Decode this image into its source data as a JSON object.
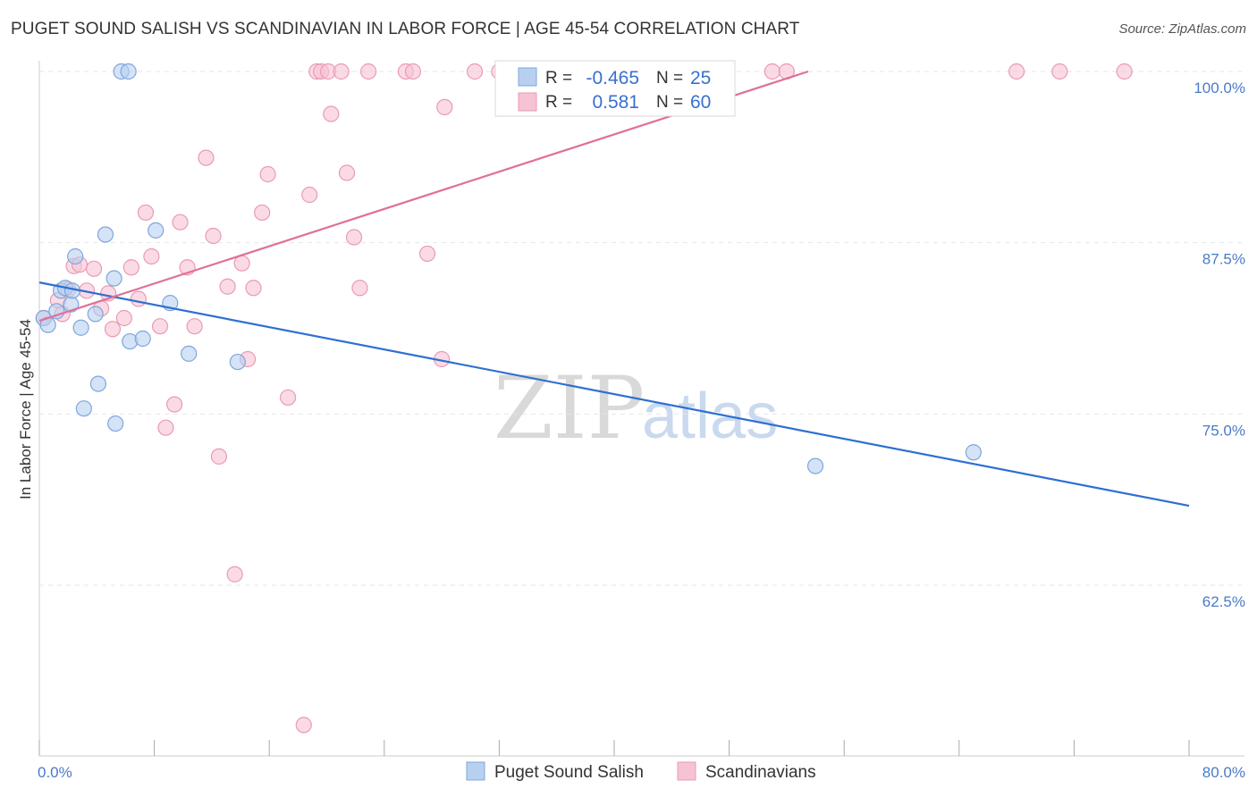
{
  "title": "PUGET SOUND SALISH VS SCANDINAVIAN IN LABOR FORCE | AGE 45-54 CORRELATION CHART",
  "source": "Source: ZipAtlas.com",
  "watermark": {
    "zip": "ZIP",
    "atlas": "atlas"
  },
  "colors": {
    "blue_fill": "#b8d0f0",
    "blue_stroke": "#7fa6dc",
    "blue_line": "#2e6fd1",
    "pink_fill": "#f6c3d3",
    "pink_stroke": "#e99ab4",
    "pink_line": "#e07098",
    "tick_text": "#4a7bc8",
    "grid": "#e6e6e6"
  },
  "legend": {
    "series": [
      {
        "r_label": "R =",
        "r_value": "-0.465",
        "n_label": "N =",
        "n_value": "25"
      },
      {
        "r_label": "R =",
        "r_value": "0.581",
        "n_label": "N =",
        "n_value": "60"
      }
    ]
  },
  "chart_data": {
    "type": "scatter",
    "xlabel": "",
    "ylabel": "In Labor Force | Age 45-54",
    "xlim": [
      0,
      80
    ],
    "ylim": [
      51,
      101.5
    ],
    "x_ticks": [
      {
        "value": 0,
        "label": "0.0%"
      },
      {
        "value": 80,
        "label": "80.0%"
      }
    ],
    "y_ticks": [
      {
        "value": 62.5,
        "label": "62.5%"
      },
      {
        "value": 75.0,
        "label": "75.0%"
      },
      {
        "value": 87.5,
        "label": "87.5%"
      },
      {
        "value": 100.0,
        "label": "100.0%"
      }
    ],
    "x_minor_ticks": [
      0,
      8,
      16,
      24,
      32,
      40,
      48,
      56,
      64,
      72,
      80
    ],
    "grid": true,
    "legend_position": "top-center",
    "series": [
      {
        "name": "Puget Sound Salish",
        "color": "blue",
        "points": [
          [
            0.3,
            82.0
          ],
          [
            0.6,
            81.5
          ],
          [
            1.2,
            82.5
          ],
          [
            1.5,
            84.0
          ],
          [
            1.8,
            84.2
          ],
          [
            2.2,
            83.0
          ],
          [
            2.3,
            84.0
          ],
          [
            2.5,
            86.5
          ],
          [
            2.9,
            81.3
          ],
          [
            3.1,
            75.4
          ],
          [
            3.9,
            82.3
          ],
          [
            4.1,
            77.2
          ],
          [
            4.6,
            88.1
          ],
          [
            5.2,
            84.9
          ],
          [
            5.3,
            74.3
          ],
          [
            5.7,
            100.0
          ],
          [
            6.2,
            100.0
          ],
          [
            6.3,
            80.3
          ],
          [
            7.2,
            80.5
          ],
          [
            8.1,
            88.4
          ],
          [
            9.1,
            83.1
          ],
          [
            10.4,
            79.4
          ],
          [
            13.8,
            78.8
          ],
          [
            54.0,
            71.2
          ],
          [
            65.0,
            72.2
          ]
        ],
        "trend": {
          "x": [
            0,
            80
          ],
          "y": [
            84.6,
            68.3
          ]
        }
      },
      {
        "name": "Scandinavians",
        "color": "pink",
        "points": [
          [
            0.3,
            82.0
          ],
          [
            1.3,
            83.3
          ],
          [
            1.6,
            82.3
          ],
          [
            2.0,
            84.1
          ],
          [
            2.4,
            85.8
          ],
          [
            2.8,
            85.9
          ],
          [
            3.3,
            84.0
          ],
          [
            3.8,
            85.6
          ],
          [
            4.3,
            82.7
          ],
          [
            4.8,
            83.8
          ],
          [
            5.1,
            81.2
          ],
          [
            5.9,
            82.0
          ],
          [
            6.4,
            85.7
          ],
          [
            6.9,
            83.4
          ],
          [
            7.4,
            89.7
          ],
          [
            7.8,
            86.5
          ],
          [
            8.4,
            81.4
          ],
          [
            8.8,
            74.0
          ],
          [
            9.4,
            75.7
          ],
          [
            9.8,
            89.0
          ],
          [
            10.3,
            85.7
          ],
          [
            10.8,
            81.4
          ],
          [
            11.6,
            93.7
          ],
          [
            12.1,
            88.0
          ],
          [
            12.5,
            71.9
          ],
          [
            13.1,
            84.3
          ],
          [
            13.6,
            63.3
          ],
          [
            14.1,
            86.0
          ],
          [
            14.5,
            79.0
          ],
          [
            14.9,
            84.2
          ],
          [
            15.5,
            89.7
          ],
          [
            15.9,
            92.5
          ],
          [
            17.3,
            76.2
          ],
          [
            18.4,
            52.3
          ],
          [
            18.8,
            91.0
          ],
          [
            19.3,
            100.0
          ],
          [
            19.6,
            100.0
          ],
          [
            20.1,
            100.0
          ],
          [
            20.3,
            96.9
          ],
          [
            21.0,
            100.0
          ],
          [
            21.4,
            92.6
          ],
          [
            21.9,
            87.9
          ],
          [
            22.3,
            84.2
          ],
          [
            22.9,
            100.0
          ],
          [
            25.5,
            100.0
          ],
          [
            26.0,
            100.0
          ],
          [
            27.0,
            86.7
          ],
          [
            28.0,
            79.0
          ],
          [
            28.2,
            97.4
          ],
          [
            30.3,
            100.0
          ],
          [
            32.0,
            100.0
          ],
          [
            33.0,
            100.0
          ],
          [
            39.0,
            100.0
          ],
          [
            41.5,
            100.0
          ],
          [
            47.5,
            100.0
          ],
          [
            51.0,
            100.0
          ],
          [
            52.0,
            100.0
          ],
          [
            68.0,
            100.0
          ],
          [
            71.0,
            100.0
          ],
          [
            75.5,
            100.0
          ]
        ],
        "trend": {
          "x": [
            0,
            53.5
          ],
          "y": [
            81.8,
            100.0
          ]
        }
      }
    ]
  }
}
